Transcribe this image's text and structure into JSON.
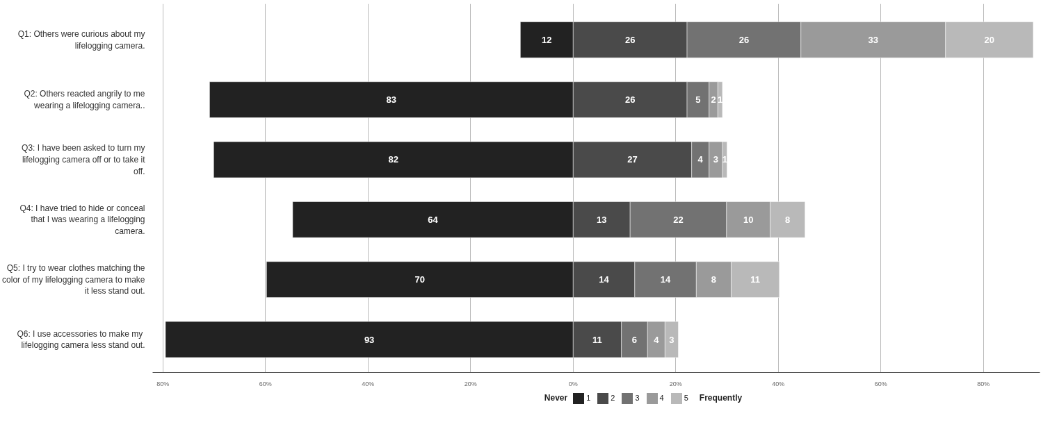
{
  "chart_data": {
    "type": "bar",
    "orientation": "horizontal",
    "stacked": true,
    "categories": [
      "Q1: Others were curious about my lifelogging camera.",
      "Q2: Others reacted angrily to me wearing a lifelogging camera..",
      "Q3: I have been asked to turn my lifelogging camera off or to take it off.",
      "Q4: I have tried to hide or conceal that I was wearing a lifelogging camera.",
      "Q5: I try to wear clothes matching the color of my lifelogging camera to make it less stand out.",
      "Q6: I  use accessories to make my lifelogging camera less stand out."
    ],
    "series": [
      {
        "name": "1",
        "color": "#222222",
        "values": [
          -10.3,
          -70.9,
          -70.1,
          -54.7,
          -59.8,
          -79.5
        ]
      },
      {
        "name": "2",
        "color": "#4a4a4a",
        "values": [
          22.2,
          22.2,
          23.1,
          11.1,
          12.0,
          9.4
        ]
      },
      {
        "name": "3",
        "color": "#727272",
        "values": [
          22.2,
          4.3,
          3.4,
          18.8,
          12.0,
          5.1
        ]
      },
      {
        "name": "4",
        "color": "#9a9a9a",
        "values": [
          28.2,
          1.7,
          2.6,
          8.5,
          6.8,
          3.4
        ]
      },
      {
        "name": "5",
        "color": "#b9b9b9",
        "values": [
          17.1,
          0.9,
          0.9,
          6.8,
          9.4,
          2.6
        ]
      }
    ],
    "xlim": [
      -82,
      91
    ],
    "xticks": [
      {
        "value": -80,
        "label": "80%"
      },
      {
        "value": -60,
        "label": "60%"
      },
      {
        "value": -40,
        "label": "40%"
      },
      {
        "value": -20,
        "label": "20%"
      },
      {
        "value": 0,
        "label": "0%"
      },
      {
        "value": 20,
        "label": "20%"
      },
      {
        "value": 40,
        "label": "40%"
      },
      {
        "value": 60,
        "label": "60%"
      },
      {
        "value": 80,
        "label": "80%"
      }
    ],
    "grid": "x",
    "legend": "bottom",
    "annotations": [
      "Never",
      "Frequently",
      "12",
      "26",
      "26",
      "33",
      "20",
      "83",
      "26",
      "5",
      "2",
      "1",
      "82",
      "27",
      "4",
      "3",
      "1",
      "64",
      "13",
      "22",
      "10",
      "8",
      "70",
      "14",
      "14",
      "8",
      "11",
      "93",
      "11",
      "6",
      "4",
      "3"
    ]
  }
}
